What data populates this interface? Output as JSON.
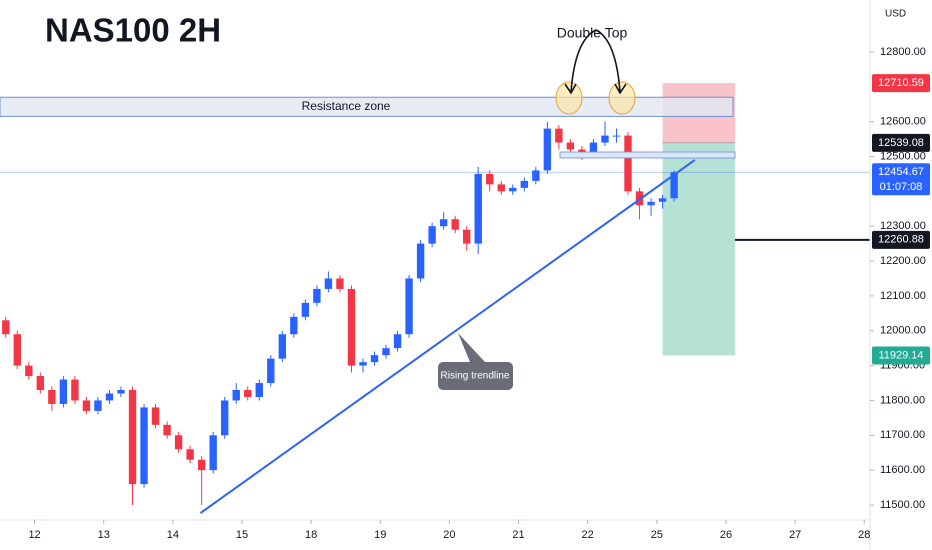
{
  "chart_data": {
    "type": "candlestick",
    "title": "NAS100 2H",
    "currency": "USD",
    "annotation_double_top": "Double Top",
    "resistance_zone": {
      "label": "Resistance zone",
      "range": [
        12615,
        12670
      ]
    },
    "trendline": {
      "label": "Rising trendline",
      "from": [
        16.9,
        11477
      ],
      "to": [
        59.8,
        12490
      ]
    },
    "position": {
      "entry": 12539.08,
      "stop": 12710.59,
      "target": 11929.14,
      "from": 57,
      "to": 63.3
    },
    "level": 12260.88,
    "countdown": "01:07:08",
    "up_color": "#2962ff",
    "down_color": "#f23645",
    "xlim": [
      -0.5,
      75
    ],
    "ylim": [
      11457,
      12949
    ],
    "xticks": [
      {
        "value": 2.5,
        "label": "12"
      },
      {
        "value": 8.5,
        "label": "13"
      },
      {
        "value": 14.5,
        "label": "14"
      },
      {
        "value": 20.5,
        "label": "15"
      },
      {
        "value": 26.5,
        "label": "18"
      },
      {
        "value": 32.5,
        "label": "19"
      },
      {
        "value": 38.5,
        "label": "20"
      },
      {
        "value": 44.5,
        "label": "21"
      },
      {
        "value": 50.5,
        "label": "22"
      },
      {
        "value": 56.5,
        "label": "25"
      },
      {
        "value": 62.5,
        "label": "26"
      },
      {
        "value": 68.5,
        "label": "27"
      },
      {
        "value": 74.5,
        "label": "28"
      }
    ],
    "yticks": [
      {
        "value": 11500,
        "label": "11500.00"
      },
      {
        "value": 11600,
        "label": "11600.00"
      },
      {
        "value": 11700,
        "label": "11700.00"
      },
      {
        "value": 11800,
        "label": "11800.00"
      },
      {
        "value": 11900,
        "label": "11900.00"
      },
      {
        "value": 12000,
        "label": "12000.00"
      },
      {
        "value": 12100,
        "label": "12100.00"
      },
      {
        "value": 12200,
        "label": "12200.00"
      },
      {
        "value": 12300,
        "label": "12300.00"
      },
      {
        "value": 12500,
        "label": "12500.00"
      },
      {
        "value": 12600,
        "label": "12600.00"
      },
      {
        "value": 12800,
        "label": "12800.00"
      }
    ],
    "open": [
      12030,
      11990,
      11900,
      11870,
      11830,
      11790,
      11860,
      11800,
      11770,
      11800,
      11820,
      11830,
      11560,
      11780,
      11730,
      11700,
      11660,
      11630,
      11600,
      11700,
      11800,
      11830,
      11810,
      11850,
      11920,
      11990,
      12040,
      12080,
      12120,
      12150,
      12120,
      11900,
      11910,
      11930,
      11950,
      11990,
      12150,
      12250,
      12300,
      12320,
      12290,
      12250,
      12450,
      12420,
      12400,
      12410,
      12430,
      12460,
      12580,
      12540,
      12520,
      12510,
      12540,
      12560,
      12560,
      12400,
      12360,
      12370,
      12380
    ],
    "high": [
      12040,
      12000,
      11910,
      11880,
      11840,
      11870,
      11870,
      11810,
      11810,
      11830,
      11840,
      11840,
      11790,
      11790,
      11740,
      11710,
      11670,
      11640,
      11710,
      11810,
      11850,
      11840,
      11860,
      11930,
      12000,
      12050,
      12090,
      12130,
      12170,
      12160,
      12130,
      11920,
      11940,
      11960,
      12000,
      12160,
      12260,
      12310,
      12340,
      12330,
      12300,
      12470,
      12460,
      12430,
      12420,
      12440,
      12470,
      12600,
      12590,
      12550,
      12530,
      12550,
      12600,
      12580,
      12570,
      12410,
      12380,
      12390,
      12460
    ],
    "low": [
      11980,
      11890,
      11860,
      11820,
      11770,
      11780,
      11790,
      11760,
      11760,
      11790,
      11810,
      11500,
      11550,
      11720,
      11690,
      11650,
      11620,
      11500,
      11590,
      11690,
      11790,
      11800,
      11800,
      11840,
      11910,
      11980,
      12030,
      12070,
      12110,
      12110,
      11880,
      11880,
      11900,
      11920,
      11940,
      11980,
      12140,
      12240,
      12290,
      12280,
      12230,
      12220,
      12400,
      12390,
      12390,
      12400,
      12420,
      12450,
      12520,
      12500,
      12490,
      12500,
      12530,
      12540,
      12390,
      12320,
      12330,
      12350,
      12370
    ],
    "close": [
      11990,
      11900,
      11870,
      11830,
      11790,
      11860,
      11800,
      11770,
      11800,
      11820,
      11830,
      11560,
      11780,
      11730,
      11700,
      11660,
      11630,
      11600,
      11700,
      11800,
      11830,
      11810,
      11850,
      11920,
      11990,
      12040,
      12080,
      12120,
      12150,
      12120,
      11900,
      11910,
      11930,
      11950,
      11990,
      12150,
      12250,
      12300,
      12320,
      12290,
      12250,
      12450,
      12420,
      12400,
      12410,
      12430,
      12460,
      12580,
      12540,
      12520,
      12510,
      12540,
      12560,
      12560,
      12400,
      12360,
      12370,
      12380,
      12454.67
    ]
  }
}
